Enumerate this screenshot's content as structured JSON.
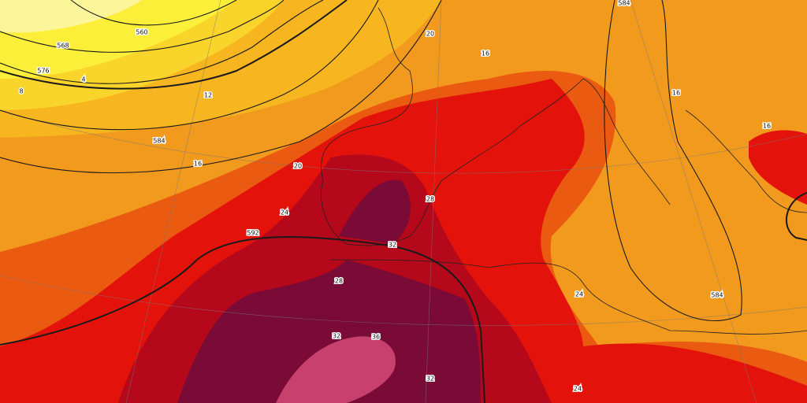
{
  "map": {
    "contour_labels": [
      "560",
      "568",
      "576",
      "4",
      "8",
      "12",
      "584",
      "16",
      "20",
      "584",
      "16",
      "16",
      "16",
      "20",
      "24",
      "28",
      "592",
      "32",
      "28",
      "24",
      "584",
      "32",
      "36",
      "32",
      "24"
    ]
  }
}
